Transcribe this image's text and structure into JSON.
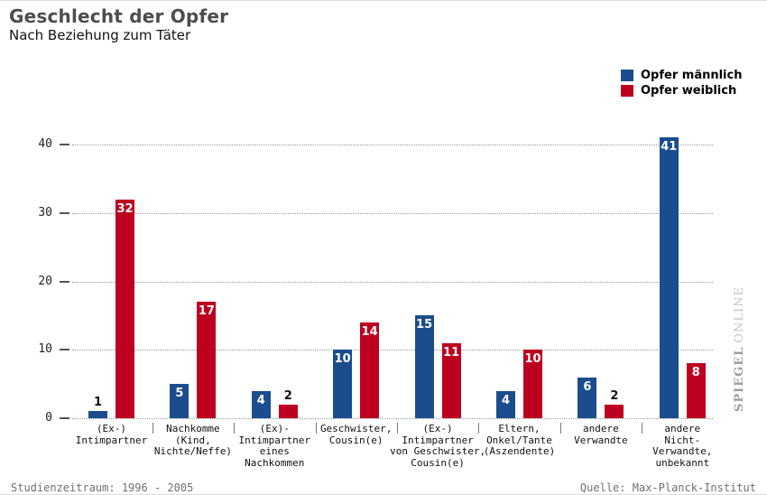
{
  "chart_data": {
    "type": "bar",
    "title": "Geschlecht der Opfer",
    "subtitle": "Nach Beziehung zum Täter",
    "categories": [
      [
        "(Ex-)",
        "Intimpartner"
      ],
      [
        "Nachkomme",
        "(Kind,",
        "Nichte/Neffe)"
      ],
      [
        "(Ex)-",
        "Intimpartner",
        "eines",
        "Nachkommen"
      ],
      [
        "Geschwister,",
        "Cousin(e)"
      ],
      [
        "(Ex-)",
        "Intimpartner",
        "von Geschwister,",
        "Cousin(e)"
      ],
      [
        "Eltern,",
        "Onkel/Tante",
        "(Aszendente)"
      ],
      [
        "andere",
        "Verwandte"
      ],
      [
        "andere",
        "Nicht-",
        "Verwandte,",
        "unbekannt"
      ]
    ],
    "series": [
      {
        "name": "Opfer männlich",
        "color": "#1b4d8e",
        "values": [
          1,
          5,
          4,
          10,
          15,
          4,
          6,
          41
        ]
      },
      {
        "name": "Opfer weiblich",
        "color": "#be0020",
        "values": [
          32,
          17,
          2,
          14,
          11,
          10,
          2,
          8
        ]
      }
    ],
    "ylim": [
      0,
      40
    ],
    "yticks": [
      0,
      10,
      20,
      30,
      40
    ],
    "grid": "dotted-horizontal",
    "legend_position": "top-right",
    "value_labels": "on-bars"
  },
  "footer": {
    "left": "Studienzeitraum: 1996 - 2005",
    "right": "Quelle: Max-Planck-Institut"
  },
  "watermark": {
    "brand": "SPIEGEL",
    "suffix": "ONLINE"
  }
}
